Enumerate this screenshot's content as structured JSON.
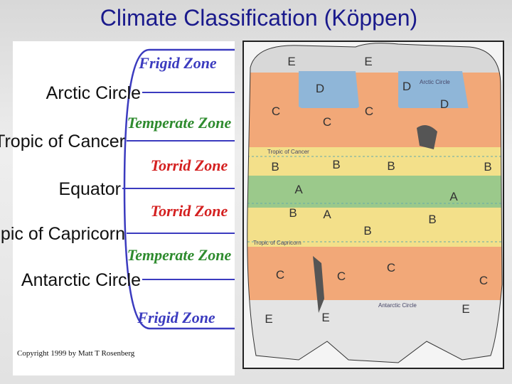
{
  "header": {
    "title": "Climate Classification (Köppen)"
  },
  "diagram": {
    "circles": [
      "Arctic Circle",
      "Tropic of Cancer",
      "Equator",
      "Tropic of Capricorn",
      "Antarctic Circle"
    ],
    "zones": [
      "Frigid Zone",
      "Temperate Zone",
      "Torrid Zone",
      "Torrid Zone",
      "Temperate Zone",
      "Frigid Zone"
    ],
    "copyright": "Copyright 1999 by Matt T Rosenberg"
  },
  "map": {
    "line_labels": [
      "Arctic Circle",
      "Tropic of Cancer",
      "Tropic of Capricorn",
      "Antarctic Circle"
    ],
    "climate_labels": [
      "E",
      "E",
      "D",
      "D",
      "D",
      "C",
      "C",
      "C",
      "B",
      "B",
      "B",
      "B",
      "A",
      "A",
      "A",
      "B",
      "B",
      "B",
      "C",
      "C",
      "C",
      "C",
      "E",
      "E",
      "E"
    ]
  }
}
